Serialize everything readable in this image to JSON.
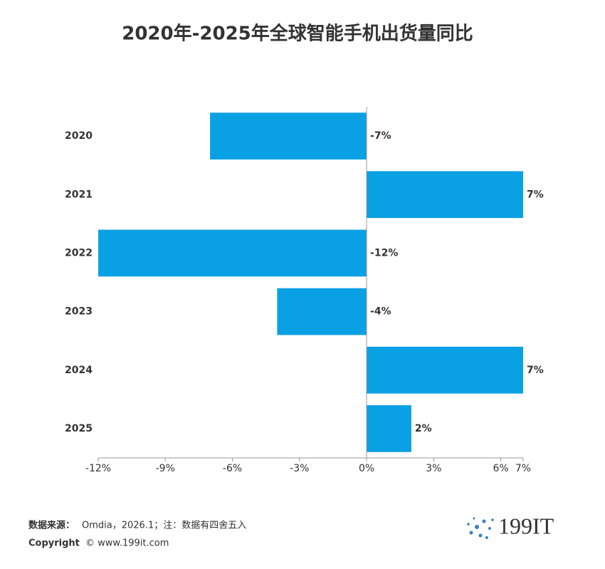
{
  "chart_data": {
    "type": "bar",
    "orientation": "horizontal",
    "title": "2020年-2025年全球智能手机出货量同比",
    "categories": [
      "2020",
      "2021",
      "2022",
      "2023",
      "2024",
      "2025"
    ],
    "values": [
      -7,
      7,
      -12,
      -4,
      7,
      2
    ],
    "value_labels": [
      "-7%",
      "7%",
      "-12%",
      "-4%",
      "7%",
      "2%"
    ],
    "color": "#0aa0e4",
    "xlim": [
      -12,
      7
    ],
    "xticks": [
      {
        "value": -12,
        "label": "-12%"
      },
      {
        "value": -9,
        "label": "-9%"
      },
      {
        "value": -6,
        "label": "-6%"
      },
      {
        "value": -3,
        "label": "-3%"
      },
      {
        "value": 0,
        "label": "0%"
      },
      {
        "value": 3,
        "label": "3%"
      },
      {
        "value": 6,
        "label": "6%"
      },
      {
        "value": 7,
        "label": "7%"
      }
    ]
  },
  "footer": {
    "source_label": "数据来源：",
    "source_text": "Omdia，2026.1；注：数据有四舍五入",
    "copyright_label": "Copyright",
    "copyright_text": "© www.199it.com",
    "logo": "199IT"
  }
}
